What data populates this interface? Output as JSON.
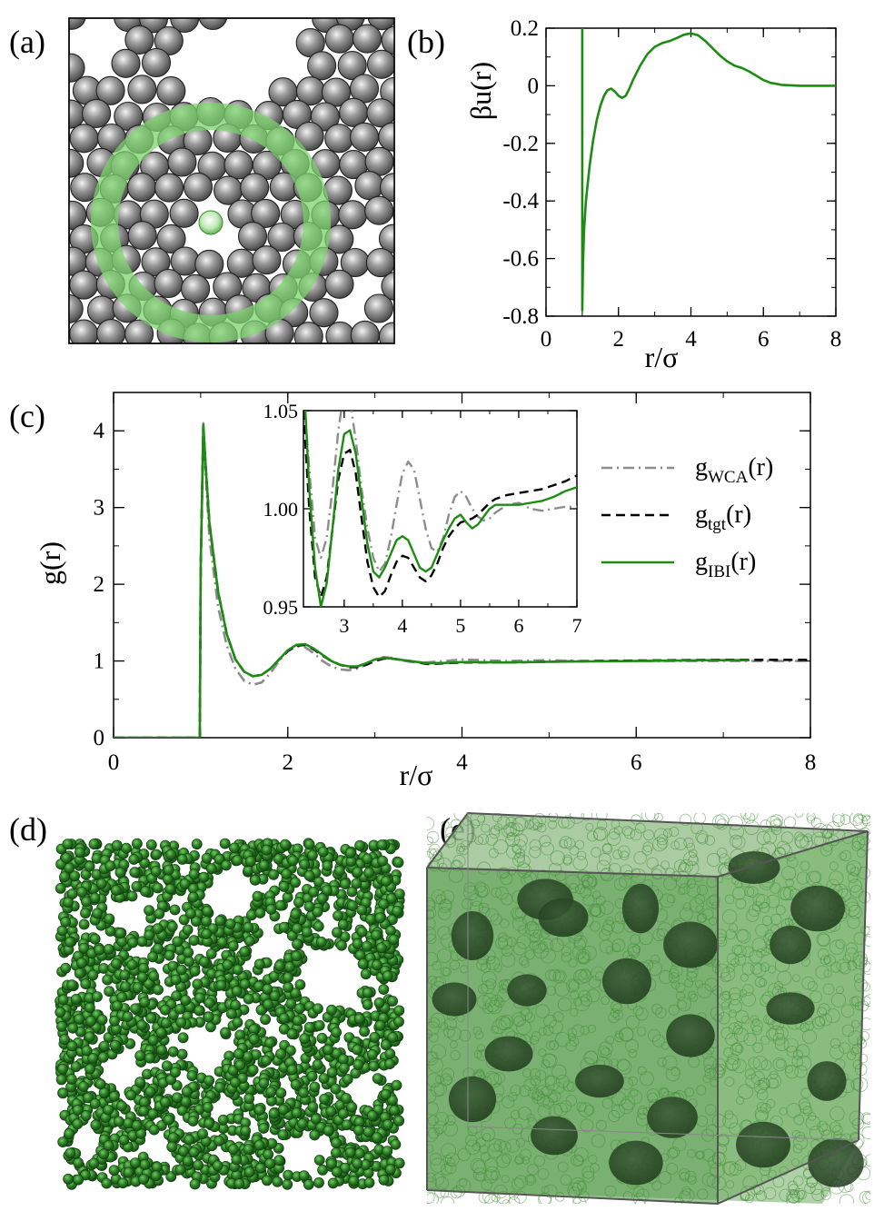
{
  "panels": {
    "a": {
      "label": "(a)"
    },
    "b": {
      "label": "(b)"
    },
    "c": {
      "label": "(c)"
    },
    "d": {
      "label": "(d)"
    },
    "e": {
      "label": "(e)"
    }
  },
  "colors": {
    "green": "#1e8c14",
    "gray": "#8c8c8c",
    "black": "#000000",
    "ring": "#7dd36d",
    "sphere_green": "#2f7a28",
    "sphere_gray": "#8a8a8a"
  },
  "chart_data": [
    {
      "panel": "b",
      "type": "line",
      "title": "",
      "xlabel": "r/σ",
      "ylabel": "βu(r)",
      "xlim": [
        0,
        8
      ],
      "ylim": [
        -0.8,
        0.2
      ],
      "xticks": [
        0,
        2,
        4,
        6,
        8
      ],
      "yticks": [
        -0.8,
        -0.6,
        -0.4,
        -0.2,
        0,
        0.2
      ],
      "xtick_labels": [
        "0",
        "2",
        "4",
        "6",
        "8"
      ],
      "ytick_labels": [
        "-0.8",
        "-0.6",
        "-0.4",
        "-0.2",
        "0",
        "0.2"
      ],
      "series": [
        {
          "color": "#1e8c14",
          "x": [
            1.0,
            1.0,
            1.02,
            1.05,
            1.1,
            1.2,
            1.3,
            1.4,
            1.5,
            1.6,
            1.7,
            1.8,
            1.9,
            2.0,
            2.1,
            2.2,
            2.3,
            2.4,
            2.6,
            2.8,
            3.0,
            3.2,
            3.4,
            3.6,
            3.8,
            4.0,
            4.2,
            4.4,
            4.6,
            4.8,
            5.0,
            5.2,
            5.4,
            5.6,
            5.8,
            6.0,
            6.2,
            6.5,
            7.0,
            7.5,
            8.0
          ],
          "y": [
            0.2,
            -0.78,
            -0.62,
            -0.5,
            -0.4,
            -0.28,
            -0.19,
            -0.12,
            -0.07,
            -0.035,
            -0.015,
            -0.01,
            -0.02,
            -0.035,
            -0.042,
            -0.035,
            -0.01,
            0.02,
            0.07,
            0.11,
            0.135,
            0.148,
            0.155,
            0.165,
            0.177,
            0.182,
            0.175,
            0.155,
            0.13,
            0.105,
            0.085,
            0.07,
            0.062,
            0.05,
            0.035,
            0.02,
            0.01,
            0.003,
            0.0,
            0.0,
            0.0
          ]
        }
      ]
    },
    {
      "panel": "c",
      "type": "line",
      "title": "",
      "xlabel": "r/σ",
      "ylabel": "g(r)",
      "xlim": [
        0,
        8
      ],
      "ylim": [
        0,
        4.5
      ],
      "xticks": [
        0,
        2,
        4,
        6,
        8
      ],
      "yticks": [
        0,
        1,
        2,
        3,
        4
      ],
      "xtick_labels": [
        "0",
        "2",
        "4",
        "6",
        "8"
      ],
      "ytick_labels": [
        "0",
        "1",
        "2",
        "3",
        "4"
      ],
      "legend": "right",
      "series": [
        {
          "name": "gWCA(r)",
          "name_main": "g",
          "name_sub": "WCA",
          "name_tail": "(r)",
          "color": "#8c8c8c",
          "dash": "dashdot",
          "x": [
            0,
            0.99,
            1.0,
            1.03,
            1.06,
            1.1,
            1.2,
            1.3,
            1.4,
            1.5,
            1.6,
            1.7,
            1.8,
            1.9,
            2.0,
            2.1,
            2.2,
            2.3,
            2.4,
            2.5,
            2.6,
            2.7,
            2.8,
            2.9,
            3.0,
            3.1,
            3.2,
            3.3,
            3.4,
            3.6,
            3.8,
            4.0,
            4.5,
            5.0,
            5.5,
            6.0,
            6.5,
            7.0,
            7.5,
            8.0
          ],
          "y": [
            0,
            0,
            2.2,
            4.1,
            3.4,
            2.6,
            1.7,
            1.2,
            0.9,
            0.74,
            0.69,
            0.72,
            0.84,
            1.0,
            1.13,
            1.19,
            1.18,
            1.1,
            1.0,
            0.93,
            0.89,
            0.88,
            0.9,
            0.95,
            1.02,
            1.05,
            1.04,
            1.01,
            0.99,
            0.98,
            1.0,
            1.02,
            1.0,
            1.01,
            0.995,
            1.0,
            1.0,
            1.0,
            1.0,
            1.0
          ]
        },
        {
          "name": "gtgt(r)",
          "name_main": "g",
          "name_sub": "tgt",
          "name_tail": "(r)",
          "color": "#000000",
          "dash": "dashed",
          "x": [
            0,
            0.99,
            1.0,
            1.03,
            1.06,
            1.1,
            1.2,
            1.3,
            1.4,
            1.5,
            1.6,
            1.7,
            1.8,
            1.9,
            2.0,
            2.1,
            2.2,
            2.3,
            2.4,
            2.5,
            2.6,
            2.7,
            2.8,
            2.9,
            3.0,
            3.1,
            3.2,
            3.4,
            3.6,
            3.8,
            4.0,
            4.5,
            5.0,
            5.5,
            6.0,
            6.5,
            7.0,
            7.5,
            8.0
          ],
          "y": [
            0,
            0,
            2.2,
            4.05,
            3.5,
            2.8,
            1.9,
            1.35,
            1.02,
            0.86,
            0.8,
            0.82,
            0.9,
            1.02,
            1.13,
            1.2,
            1.21,
            1.15,
            1.07,
            1.0,
            0.95,
            0.92,
            0.92,
            0.95,
            1.0,
            1.03,
            1.03,
            1.0,
            0.96,
            0.97,
            0.98,
            0.98,
            0.99,
            1.0,
            1.005,
            1.01,
            1.015,
            1.015,
            1.015
          ]
        },
        {
          "name": "gIBI(r)",
          "name_main": "g",
          "name_sub": "IBI",
          "name_tail": "(r)",
          "color": "#1e8c14",
          "dash": "solid",
          "x": [
            0,
            0.99,
            1.0,
            1.03,
            1.06,
            1.1,
            1.2,
            1.3,
            1.4,
            1.5,
            1.6,
            1.7,
            1.8,
            1.9,
            2.0,
            2.1,
            2.2,
            2.3,
            2.4,
            2.5,
            2.6,
            2.7,
            2.8,
            2.9,
            3.0,
            3.1,
            3.2,
            3.4,
            3.6,
            3.8,
            4.0,
            4.5,
            5.0,
            5.5,
            6.0,
            6.5,
            7.0,
            7.3
          ],
          "y": [
            0,
            0,
            2.2,
            4.08,
            3.5,
            2.8,
            1.9,
            1.35,
            1.02,
            0.86,
            0.8,
            0.82,
            0.9,
            1.02,
            1.14,
            1.21,
            1.22,
            1.16,
            1.08,
            1.0,
            0.95,
            0.93,
            0.93,
            0.97,
            1.02,
            1.04,
            1.03,
            1.0,
            0.97,
            0.975,
            0.985,
            0.98,
            0.99,
            0.995,
            1.0,
            1.005,
            1.01,
            1.01
          ]
        }
      ]
    },
    {
      "panel": "c-inset",
      "type": "line",
      "title": "",
      "xlabel": "",
      "ylabel": "",
      "xlim": [
        2.3,
        7
      ],
      "ylim": [
        0.95,
        1.05
      ],
      "xticks": [
        3,
        4,
        5,
        6,
        7
      ],
      "yticks": [
        0.95,
        1.0,
        1.05
      ],
      "xtick_labels": [
        "3",
        "4",
        "5",
        "6",
        "7"
      ],
      "ytick_labels": [
        "0.95",
        "1.00",
        "1.05"
      ],
      "series": [
        {
          "color": "#8c8c8c",
          "dash": "dashdot",
          "x": [
            2.3,
            2.4,
            2.5,
            2.6,
            2.7,
            2.8,
            2.9,
            3.0,
            3.1,
            3.2,
            3.3,
            3.4,
            3.5,
            3.6,
            3.7,
            3.8,
            3.9,
            4.0,
            4.1,
            4.2,
            4.3,
            4.4,
            4.5,
            4.6,
            4.7,
            4.8,
            4.9,
            5.0,
            5.1,
            5.2,
            5.3,
            5.4,
            5.5,
            5.6,
            5.8,
            6.0,
            6.2,
            6.4,
            6.6,
            6.8,
            7.0
          ],
          "y": [
            1.06,
            1.02,
            0.985,
            0.975,
            0.985,
            1.01,
            1.04,
            1.06,
            1.055,
            1.035,
            1.01,
            0.99,
            0.975,
            0.968,
            0.972,
            0.985,
            1.002,
            1.018,
            1.024,
            1.02,
            1.005,
            0.99,
            0.98,
            0.978,
            0.985,
            0.997,
            1.006,
            1.009,
            1.006,
            1.0,
            0.996,
            0.994,
            0.995,
            0.998,
            1.002,
            1.003,
            1.0,
            0.999,
            1.0,
            1.001,
            1.001
          ]
        },
        {
          "color": "#000000",
          "dash": "dashed",
          "x": [
            2.3,
            2.4,
            2.5,
            2.6,
            2.7,
            2.8,
            2.9,
            3.0,
            3.1,
            3.2,
            3.3,
            3.4,
            3.5,
            3.6,
            3.7,
            3.8,
            3.9,
            4.0,
            4.1,
            4.2,
            4.3,
            4.4,
            4.5,
            4.6,
            4.7,
            4.8,
            4.9,
            5.0,
            5.1,
            5.2,
            5.3,
            5.4,
            5.5,
            5.6,
            5.8,
            6.0,
            6.2,
            6.4,
            6.6,
            6.8,
            7.0
          ],
          "y": [
            1.05,
            1.0,
            0.965,
            0.955,
            0.965,
            0.99,
            1.015,
            1.028,
            1.03,
            1.018,
            0.995,
            0.973,
            0.96,
            0.955,
            0.958,
            0.966,
            0.973,
            0.976,
            0.975,
            0.97,
            0.965,
            0.963,
            0.966,
            0.972,
            0.98,
            0.986,
            0.99,
            0.993,
            0.994,
            0.995,
            0.997,
            1.0,
            1.003,
            1.005,
            1.007,
            1.008,
            1.009,
            1.01,
            1.012,
            1.014,
            1.017
          ]
        },
        {
          "color": "#1e8c14",
          "dash": "solid",
          "x": [
            2.3,
            2.4,
            2.5,
            2.6,
            2.7,
            2.8,
            2.9,
            3.0,
            3.1,
            3.2,
            3.3,
            3.4,
            3.5,
            3.6,
            3.7,
            3.8,
            3.9,
            4.0,
            4.1,
            4.2,
            4.3,
            4.4,
            4.5,
            4.6,
            4.7,
            4.8,
            4.9,
            5.0,
            5.1,
            5.2,
            5.3,
            5.4,
            5.5,
            5.6,
            5.8,
            6.0,
            6.2,
            6.4,
            6.6,
            6.8,
            7.0
          ],
          "y": [
            1.07,
            1.01,
            0.97,
            0.95,
            0.962,
            0.99,
            1.02,
            1.038,
            1.04,
            1.028,
            1.005,
            0.982,
            0.968,
            0.965,
            0.97,
            0.977,
            0.984,
            0.986,
            0.984,
            0.977,
            0.97,
            0.968,
            0.97,
            0.977,
            0.984,
            0.99,
            0.995,
            0.997,
            0.993,
            0.99,
            0.992,
            0.996,
            1.0,
            1.002,
            1.002,
            1.002,
            1.003,
            1.004,
            1.006,
            1.009,
            1.011
          ]
        }
      ]
    }
  ]
}
